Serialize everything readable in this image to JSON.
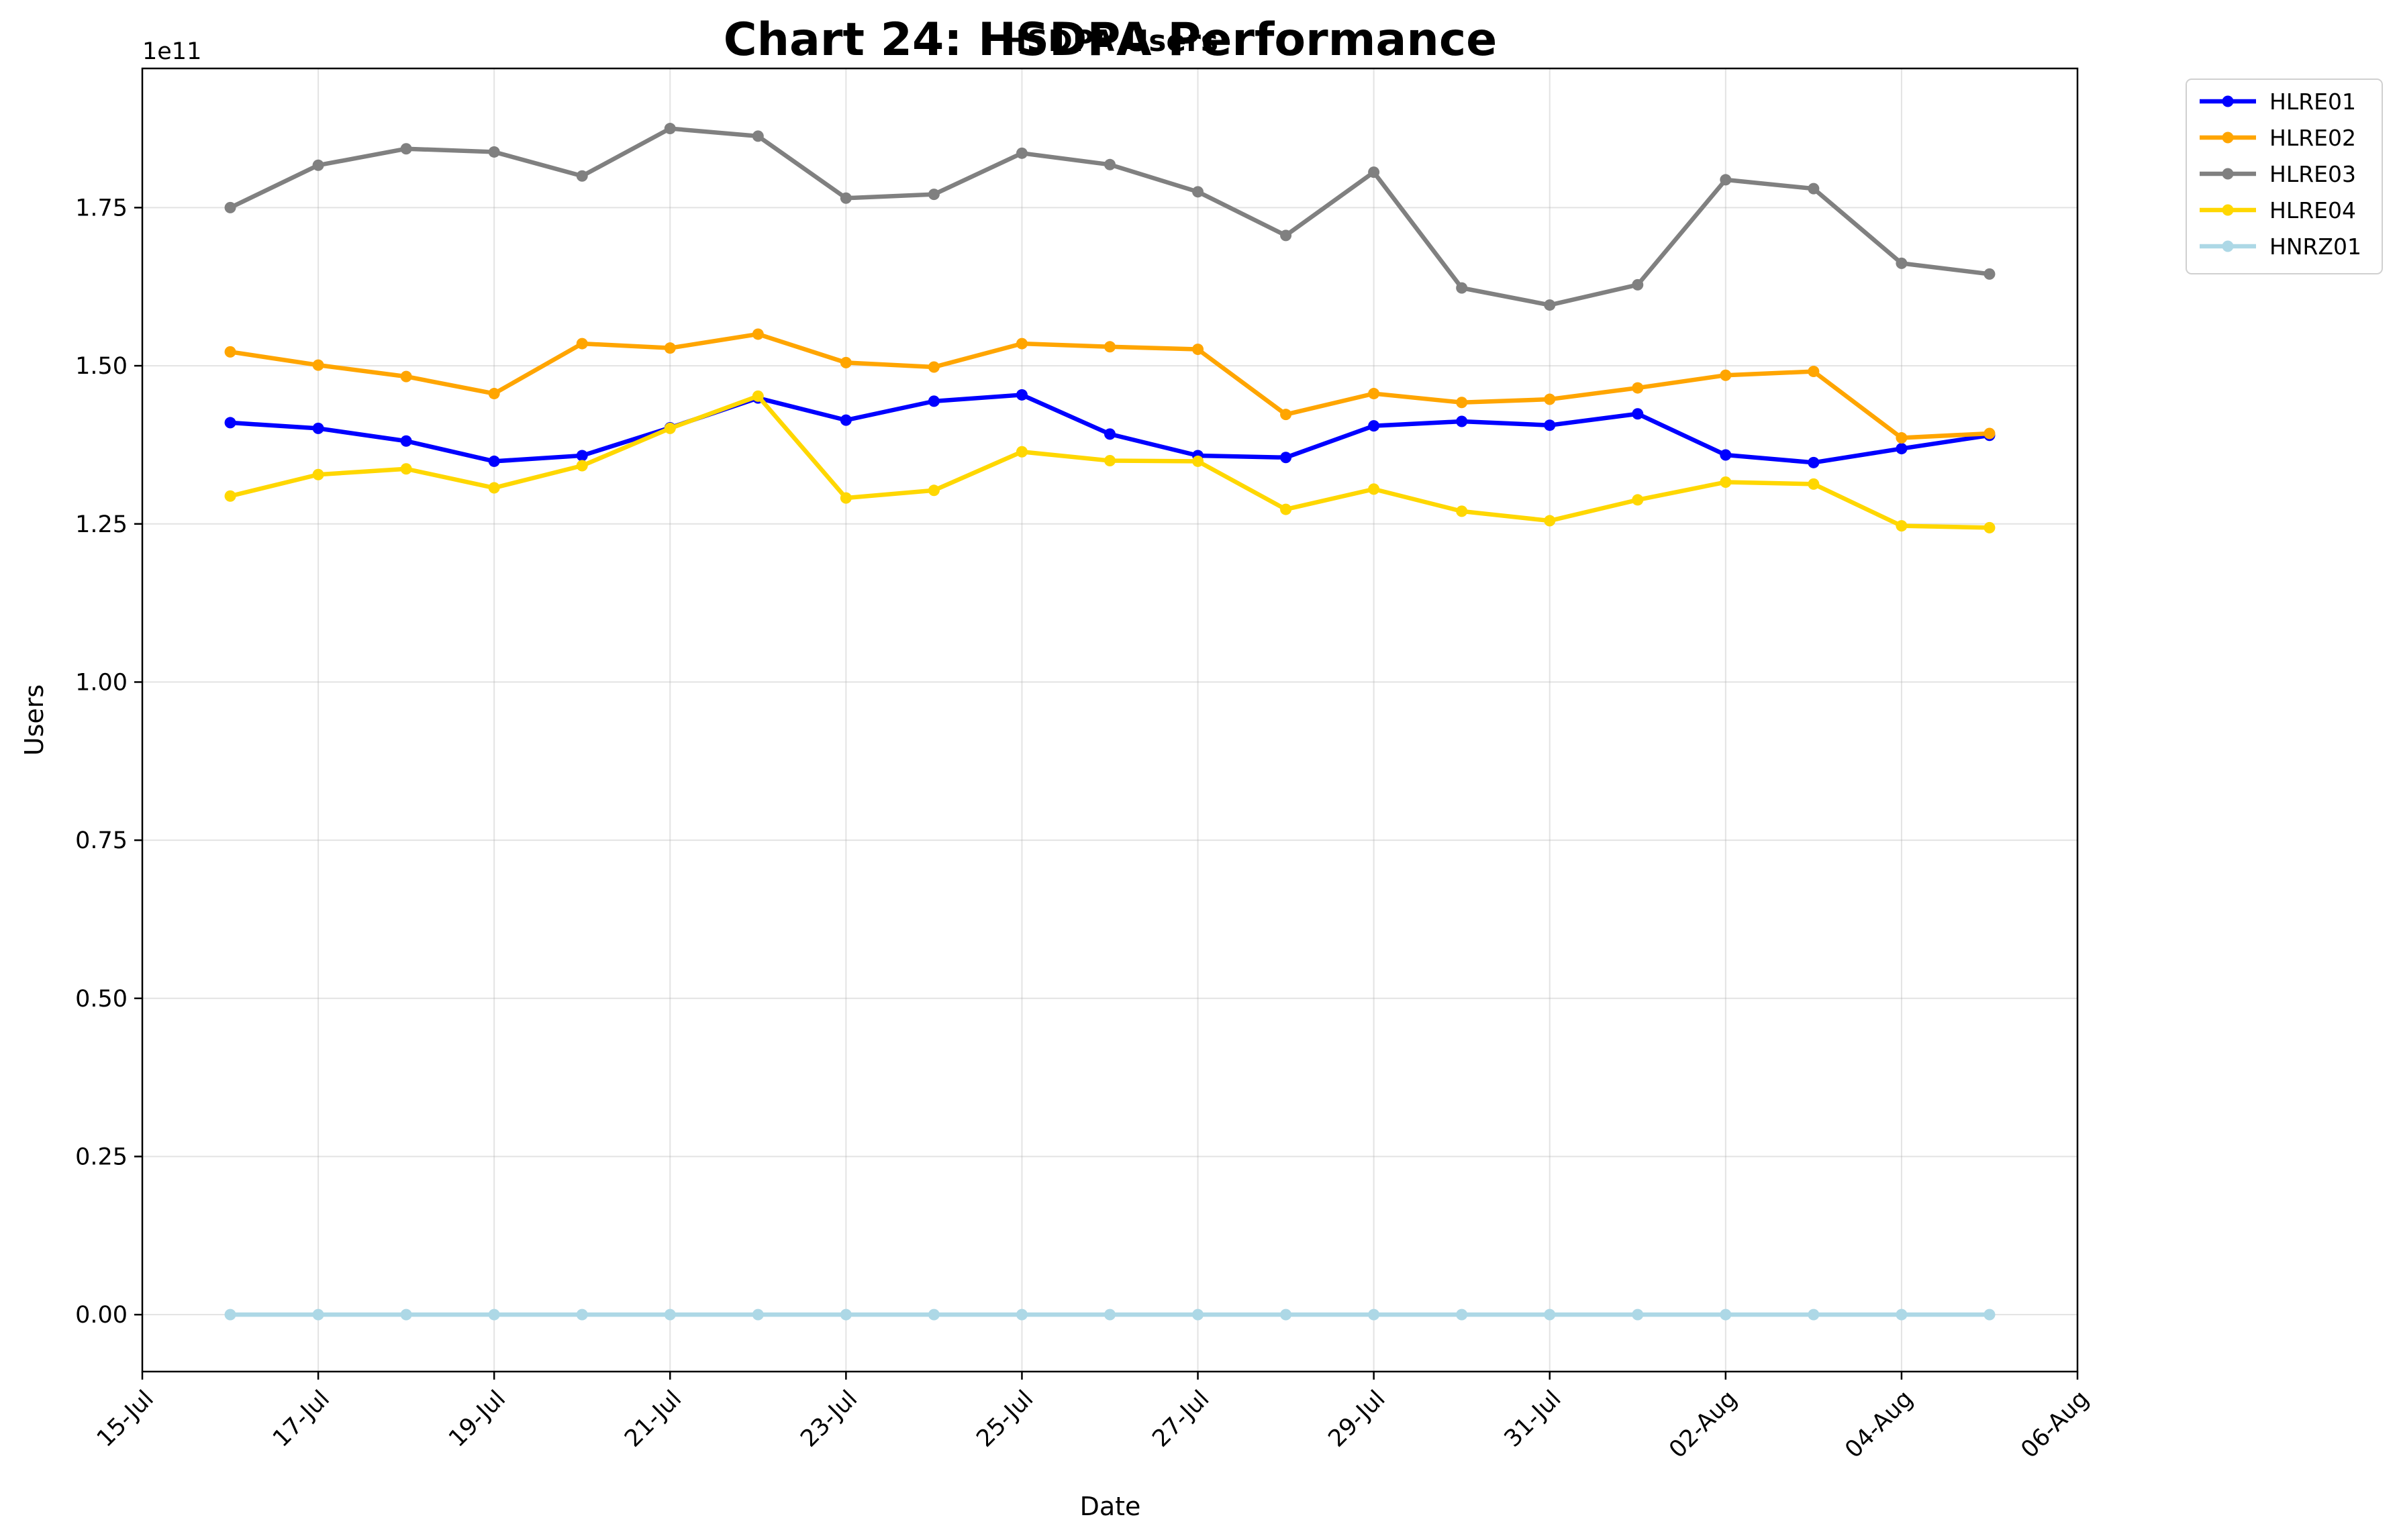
{
  "chart_data": {
    "type": "line",
    "title": "Chart 24: HSDPA Performance",
    "subtitle": "HSDPA Users",
    "xlabel": "Date",
    "ylabel": "Users",
    "y_exponent_label": "1e11",
    "y_exponent": 11,
    "xlim": [
      "2024-07-15",
      "2024-08-06"
    ],
    "ylim": [
      -0.09,
      1.97
    ],
    "grid": true,
    "legend_position": "outside-top-right",
    "x_ticks": [
      {
        "date": "2024-07-15",
        "label": "15-Jul"
      },
      {
        "date": "2024-07-17",
        "label": "17-Jul"
      },
      {
        "date": "2024-07-19",
        "label": "19-Jul"
      },
      {
        "date": "2024-07-21",
        "label": "21-Jul"
      },
      {
        "date": "2024-07-23",
        "label": "23-Jul"
      },
      {
        "date": "2024-07-25",
        "label": "25-Jul"
      },
      {
        "date": "2024-07-27",
        "label": "27-Jul"
      },
      {
        "date": "2024-07-29",
        "label": "29-Jul"
      },
      {
        "date": "2024-07-31",
        "label": "31-Jul"
      },
      {
        "date": "2024-08-02",
        "label": "02-Aug"
      },
      {
        "date": "2024-08-04",
        "label": "04-Aug"
      },
      {
        "date": "2024-08-06",
        "label": "06-Aug"
      }
    ],
    "y_ticks": [
      {
        "value": 0.0,
        "label": "0.00"
      },
      {
        "value": 0.25,
        "label": "0.25"
      },
      {
        "value": 0.5,
        "label": "0.50"
      },
      {
        "value": 0.75,
        "label": "0.75"
      },
      {
        "value": 1.0,
        "label": "1.00"
      },
      {
        "value": 1.25,
        "label": "1.25"
      },
      {
        "value": 1.5,
        "label": "1.50"
      },
      {
        "value": 1.75,
        "label": "1.75"
      }
    ],
    "x": [
      "2024-07-16",
      "2024-07-17",
      "2024-07-18",
      "2024-07-19",
      "2024-07-20",
      "2024-07-21",
      "2024-07-22",
      "2024-07-23",
      "2024-07-24",
      "2024-07-25",
      "2024-07-26",
      "2024-07-27",
      "2024-07-28",
      "2024-07-29",
      "2024-07-30",
      "2024-07-31",
      "2024-08-01",
      "2024-08-02",
      "2024-08-03",
      "2024-08-04",
      "2024-08-05"
    ],
    "series": [
      {
        "name": "HLRE01",
        "color": "#0000ff",
        "values": [
          1.41,
          1.401,
          1.381,
          1.349,
          1.358,
          1.402,
          1.449,
          1.414,
          1.444,
          1.454,
          1.392,
          1.358,
          1.355,
          1.405,
          1.412,
          1.406,
          1.424,
          1.359,
          1.347,
          1.369,
          1.39
        ]
      },
      {
        "name": "HLRE02",
        "color": "#ffa500",
        "values": [
          1.522,
          1.501,
          1.483,
          1.456,
          1.535,
          1.528,
          1.55,
          1.505,
          1.498,
          1.535,
          1.53,
          1.526,
          1.423,
          1.456,
          1.442,
          1.447,
          1.465,
          1.485,
          1.491,
          1.386,
          1.393
        ]
      },
      {
        "name": "HLRE03",
        "color": "#808080",
        "values": [
          1.75,
          1.817,
          1.843,
          1.838,
          1.8,
          1.875,
          1.863,
          1.765,
          1.771,
          1.836,
          1.818,
          1.775,
          1.706,
          1.806,
          1.623,
          1.596,
          1.628,
          1.794,
          1.78,
          1.662,
          1.645
        ]
      },
      {
        "name": "HLRE04",
        "color": "#ffd700",
        "values": [
          1.294,
          1.328,
          1.337,
          1.307,
          1.342,
          1.401,
          1.452,
          1.291,
          1.303,
          1.364,
          1.35,
          1.349,
          1.273,
          1.305,
          1.27,
          1.255,
          1.288,
          1.316,
          1.313,
          1.247,
          1.244
        ]
      },
      {
        "name": "HNRZ01",
        "color": "#add8e6",
        "values": [
          0.0,
          0.0,
          0.0,
          0.0,
          0.0,
          0.0,
          0.0,
          0.0,
          0.0,
          0.0,
          0.0,
          0.0,
          0.0,
          0.0,
          0.0,
          0.0,
          0.0,
          0.0,
          0.0,
          0.0,
          0.0
        ]
      }
    ]
  }
}
